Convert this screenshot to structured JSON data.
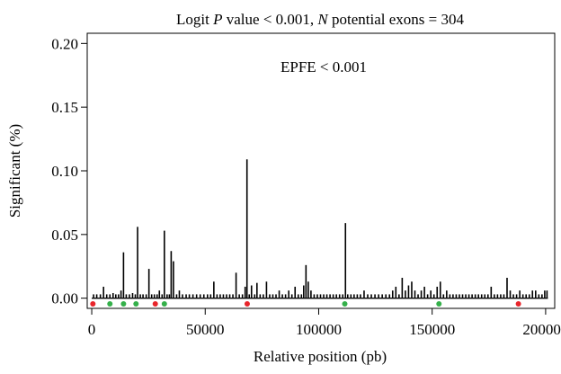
{
  "chart_data": {
    "type": "bar",
    "title_parts": {
      "prefix": "Logit ",
      "p_symbol": "P",
      "mid": " value < 0.001, ",
      "n_symbol": "N",
      "suffix": " potential exons = 304"
    },
    "annotation": "EPFE < 0.001",
    "xlabel": "Relative position (pb)",
    "ylabel": "Significant (%)",
    "xlim": [
      -2000,
      204000
    ],
    "ylim": [
      -0.008,
      0.208
    ],
    "xticks": [
      {
        "value": 0,
        "label": "0"
      },
      {
        "value": 50000,
        "label": "50000"
      },
      {
        "value": 100000,
        "label": "100000"
      },
      {
        "value": 150000,
        "label": "150000"
      },
      {
        "value": 200000,
        "label": "200000"
      }
    ],
    "yticks": [
      {
        "value": 0.0,
        "label": "0.00"
      },
      {
        "value": 0.05,
        "label": "0.05"
      },
      {
        "value": 0.1,
        "label": "0.10"
      },
      {
        "value": 0.15,
        "label": "0.15"
      },
      {
        "value": 0.2,
        "label": "0.20"
      }
    ],
    "bars": [
      [
        800,
        0.003
      ],
      [
        2200,
        0.003
      ],
      [
        3800,
        0.003
      ],
      [
        5200,
        0.009
      ],
      [
        6600,
        0.003
      ],
      [
        8000,
        0.003
      ],
      [
        9400,
        0.004
      ],
      [
        10600,
        0.003
      ],
      [
        11800,
        0.003
      ],
      [
        12900,
        0.006
      ],
      [
        14000,
        0.036
      ],
      [
        15200,
        0.003
      ],
      [
        16600,
        0.003
      ],
      [
        18000,
        0.004
      ],
      [
        19200,
        0.003
      ],
      [
        20200,
        0.056
      ],
      [
        21400,
        0.003
      ],
      [
        22600,
        0.003
      ],
      [
        24000,
        0.003
      ],
      [
        25200,
        0.023
      ],
      [
        26400,
        0.003
      ],
      [
        27600,
        0.003
      ],
      [
        28800,
        0.003
      ],
      [
        29800,
        0.006
      ],
      [
        31000,
        0.003
      ],
      [
        32000,
        0.053
      ],
      [
        33200,
        0.003
      ],
      [
        34200,
        0.003
      ],
      [
        35000,
        0.037
      ],
      [
        36000,
        0.029
      ],
      [
        37400,
        0.003
      ],
      [
        38600,
        0.006
      ],
      [
        40000,
        0.003
      ],
      [
        41600,
        0.003
      ],
      [
        43000,
        0.003
      ],
      [
        44600,
        0.003
      ],
      [
        46200,
        0.003
      ],
      [
        47800,
        0.003
      ],
      [
        49400,
        0.003
      ],
      [
        51000,
        0.003
      ],
      [
        52400,
        0.003
      ],
      [
        53800,
        0.013
      ],
      [
        55200,
        0.003
      ],
      [
        56600,
        0.003
      ],
      [
        58000,
        0.003
      ],
      [
        59400,
        0.003
      ],
      [
        60800,
        0.003
      ],
      [
        62200,
        0.003
      ],
      [
        63600,
        0.02
      ],
      [
        65000,
        0.003
      ],
      [
        66400,
        0.003
      ],
      [
        67600,
        0.009
      ],
      [
        68400,
        0.109
      ],
      [
        69400,
        0.003
      ],
      [
        70400,
        0.01
      ],
      [
        71800,
        0.003
      ],
      [
        72800,
        0.012
      ],
      [
        74200,
        0.003
      ],
      [
        75600,
        0.003
      ],
      [
        77000,
        0.013
      ],
      [
        78400,
        0.003
      ],
      [
        79800,
        0.003
      ],
      [
        81200,
        0.003
      ],
      [
        82600,
        0.006
      ],
      [
        84000,
        0.003
      ],
      [
        85400,
        0.003
      ],
      [
        86800,
        0.006
      ],
      [
        88200,
        0.003
      ],
      [
        89600,
        0.009
      ],
      [
        91000,
        0.003
      ],
      [
        92400,
        0.003
      ],
      [
        93400,
        0.01
      ],
      [
        94400,
        0.026
      ],
      [
        95400,
        0.013
      ],
      [
        96600,
        0.006
      ],
      [
        98000,
        0.003
      ],
      [
        99400,
        0.003
      ],
      [
        100800,
        0.003
      ],
      [
        102200,
        0.003
      ],
      [
        103600,
        0.003
      ],
      [
        105000,
        0.003
      ],
      [
        106400,
        0.003
      ],
      [
        107800,
        0.003
      ],
      [
        109200,
        0.003
      ],
      [
        110600,
        0.003
      ],
      [
        111800,
        0.059
      ],
      [
        112800,
        0.003
      ],
      [
        114200,
        0.003
      ],
      [
        115600,
        0.003
      ],
      [
        117000,
        0.003
      ],
      [
        118400,
        0.003
      ],
      [
        120000,
        0.006
      ],
      [
        121600,
        0.003
      ],
      [
        123200,
        0.003
      ],
      [
        124800,
        0.003
      ],
      [
        126400,
        0.003
      ],
      [
        128000,
        0.003
      ],
      [
        129600,
        0.003
      ],
      [
        131200,
        0.003
      ],
      [
        132600,
        0.006
      ],
      [
        134000,
        0.009
      ],
      [
        135400,
        0.003
      ],
      [
        136800,
        0.016
      ],
      [
        138200,
        0.006
      ],
      [
        139600,
        0.01
      ],
      [
        141000,
        0.013
      ],
      [
        142400,
        0.006
      ],
      [
        143800,
        0.003
      ],
      [
        145200,
        0.006
      ],
      [
        146600,
        0.009
      ],
      [
        148000,
        0.003
      ],
      [
        149400,
        0.006
      ],
      [
        150800,
        0.003
      ],
      [
        152200,
        0.009
      ],
      [
        153600,
        0.013
      ],
      [
        155000,
        0.003
      ],
      [
        156400,
        0.006
      ],
      [
        157800,
        0.003
      ],
      [
        159200,
        0.003
      ],
      [
        160600,
        0.003
      ],
      [
        162000,
        0.003
      ],
      [
        163400,
        0.003
      ],
      [
        164800,
        0.003
      ],
      [
        166200,
        0.003
      ],
      [
        167600,
        0.003
      ],
      [
        169000,
        0.003
      ],
      [
        170400,
        0.003
      ],
      [
        171800,
        0.003
      ],
      [
        173200,
        0.003
      ],
      [
        174600,
        0.003
      ],
      [
        176000,
        0.009
      ],
      [
        177400,
        0.003
      ],
      [
        178800,
        0.003
      ],
      [
        180200,
        0.003
      ],
      [
        181600,
        0.003
      ],
      [
        183000,
        0.016
      ],
      [
        184400,
        0.006
      ],
      [
        185800,
        0.003
      ],
      [
        187200,
        0.003
      ],
      [
        188600,
        0.006
      ],
      [
        190000,
        0.003
      ],
      [
        191400,
        0.003
      ],
      [
        192800,
        0.003
      ],
      [
        194200,
        0.006
      ],
      [
        195600,
        0.006
      ],
      [
        197000,
        0.003
      ],
      [
        198400,
        0.003
      ],
      [
        199600,
        0.006
      ],
      [
        200600,
        0.006
      ]
    ],
    "markers_y": -0.0045,
    "markers": [
      {
        "x": 500,
        "color": "#e8252b"
      },
      {
        "x": 8000,
        "color": "#34b04a"
      },
      {
        "x": 14000,
        "color": "#34b04a"
      },
      {
        "x": 19500,
        "color": "#34b04a"
      },
      {
        "x": 28000,
        "color": "#e8252b"
      },
      {
        "x": 32000,
        "color": "#34b04a"
      },
      {
        "x": 68500,
        "color": "#e8252b"
      },
      {
        "x": 111500,
        "color": "#34b04a"
      },
      {
        "x": 153000,
        "color": "#34b04a"
      },
      {
        "x": 188000,
        "color": "#e8252b"
      }
    ],
    "colors": {
      "bar": "#000000",
      "red_marker": "#e8252b",
      "green_marker": "#34b04a"
    }
  }
}
